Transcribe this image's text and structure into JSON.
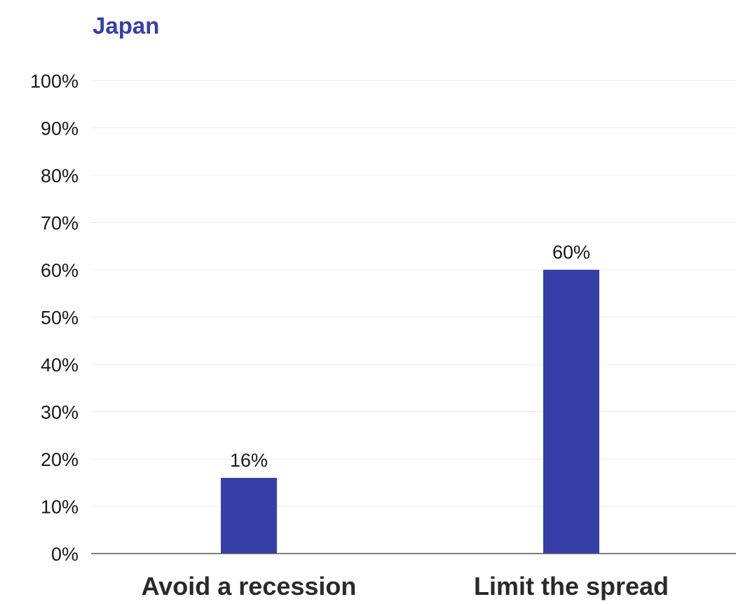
{
  "chart_data": {
    "type": "bar",
    "title": "Japan",
    "categories": [
      "Avoid a recession",
      "Limit the spread"
    ],
    "values": [
      16,
      60
    ],
    "data_labels": [
      "16%",
      "60%"
    ],
    "ylim": [
      0,
      100
    ],
    "yticks": [
      0,
      10,
      20,
      30,
      40,
      50,
      60,
      70,
      80,
      90,
      100
    ],
    "ytick_labels": [
      "0%",
      "10%",
      "20%",
      "30%",
      "40%",
      "50%",
      "60%",
      "70%",
      "80%",
      "90%",
      "100%"
    ],
    "xlabel": "",
    "ylabel": "",
    "grid": true,
    "legend": "none",
    "colors": {
      "bar": "#363fa8",
      "title": "#363fa8",
      "grid": "#ececec",
      "axis": "#555555"
    }
  }
}
